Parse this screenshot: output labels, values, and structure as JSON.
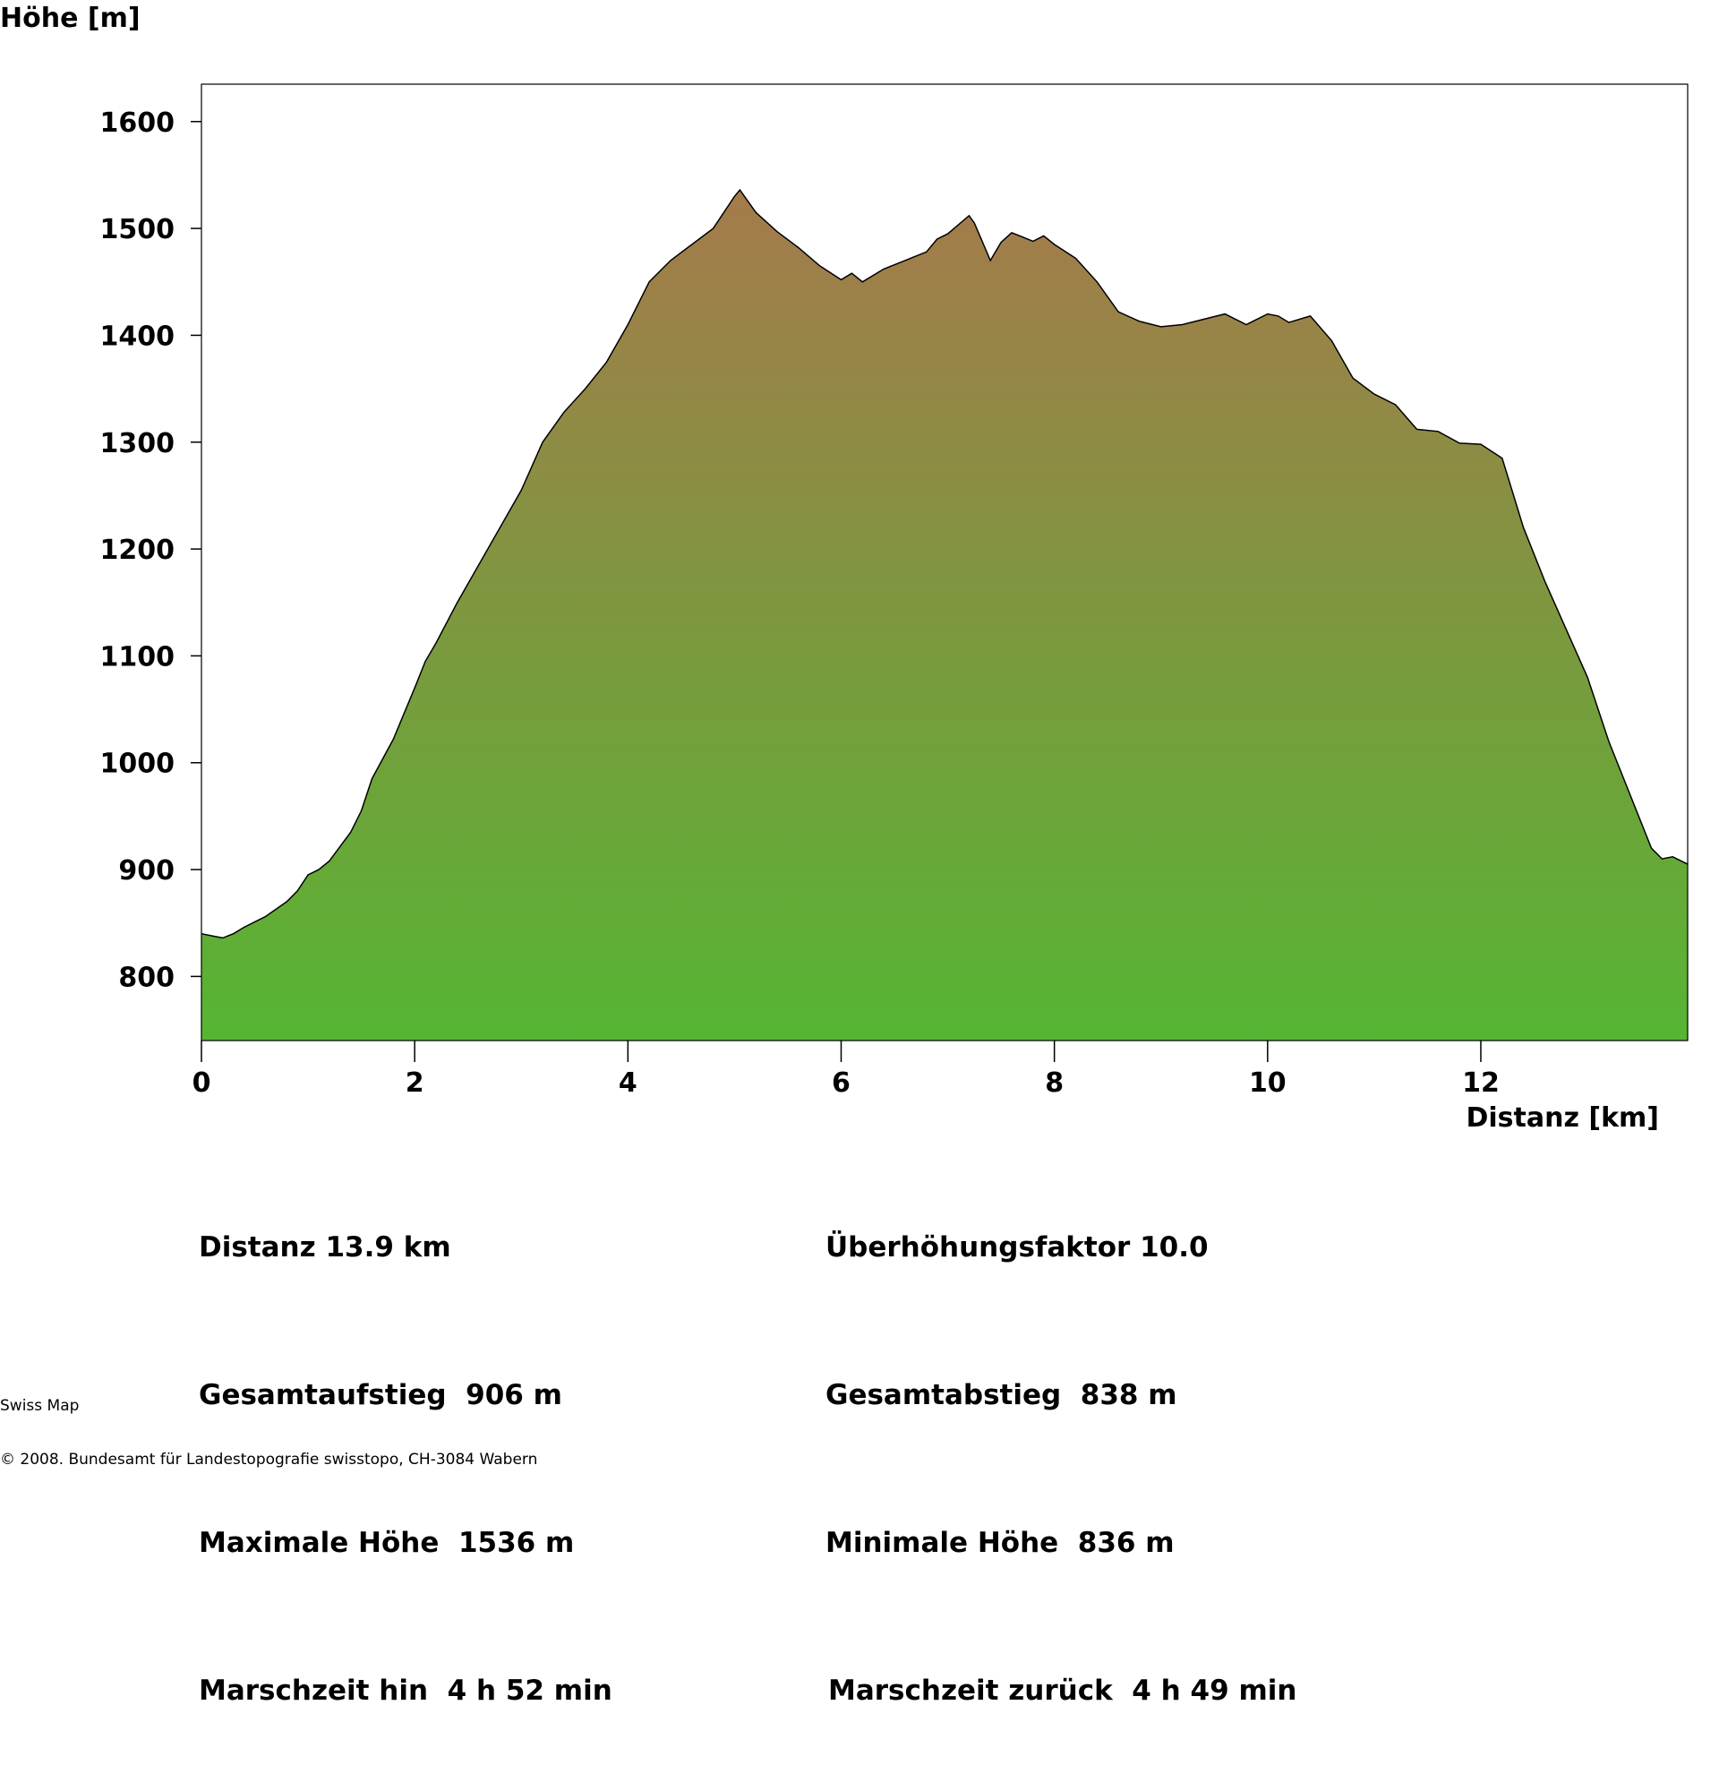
{
  "chart_data": {
    "type": "area",
    "ylabel": "Höhe [m]",
    "xlabel": "Distanz [km]",
    "xlim": [
      0,
      13.94
    ],
    "ylim": [
      740,
      1635
    ],
    "x_ticks": [
      0,
      2,
      4,
      6,
      8,
      10,
      12
    ],
    "y_ticks": [
      800,
      900,
      1000,
      1100,
      1200,
      1300,
      1400,
      1500,
      1600
    ],
    "grid": false,
    "fill_gradient": {
      "top": "#a57a4b",
      "bottom": "#56b533"
    },
    "x": [
      0,
      0.1,
      0.2,
      0.3,
      0.4,
      0.6,
      0.8,
      0.9,
      1.0,
      1.1,
      1.2,
      1.4,
      1.5,
      1.6,
      1.8,
      2.0,
      2.1,
      2.2,
      2.4,
      2.6,
      2.8,
      3.0,
      3.2,
      3.4,
      3.6,
      3.8,
      4.0,
      4.2,
      4.4,
      4.6,
      4.8,
      5.0,
      5.05,
      5.2,
      5.4,
      5.6,
      5.8,
      6.0,
      6.1,
      6.2,
      6.4,
      6.6,
      6.8,
      6.9,
      7.0,
      7.2,
      7.25,
      7.4,
      7.5,
      7.6,
      7.7,
      7.8,
      7.9,
      8.0,
      8.2,
      8.4,
      8.6,
      8.8,
      9.0,
      9.2,
      9.4,
      9.6,
      9.8,
      10.0,
      10.1,
      10.2,
      10.4,
      10.6,
      10.8,
      11.0,
      11.2,
      11.4,
      11.6,
      11.8,
      12.0,
      12.2,
      12.4,
      12.6,
      12.8,
      13.0,
      13.2,
      13.4,
      13.6,
      13.7,
      13.8,
      13.94
    ],
    "values": [
      840,
      838,
      836,
      840,
      846,
      856,
      870,
      880,
      895,
      900,
      908,
      935,
      955,
      985,
      1022,
      1070,
      1095,
      1112,
      1150,
      1185,
      1220,
      1255,
      1300,
      1328,
      1350,
      1375,
      1410,
      1450,
      1470,
      1485,
      1500,
      1530,
      1536,
      1515,
      1497,
      1482,
      1465,
      1452,
      1458,
      1450,
      1462,
      1470,
      1478,
      1490,
      1495,
      1512,
      1505,
      1470,
      1487,
      1496,
      1492,
      1488,
      1493,
      1485,
      1472,
      1450,
      1422,
      1413,
      1408,
      1410,
      1415,
      1420,
      1410,
      1420,
      1418,
      1412,
      1418,
      1395,
      1360,
      1345,
      1335,
      1312,
      1310,
      1299,
      1298,
      1285,
      1220,
      1170,
      1125,
      1080,
      1020,
      970,
      920,
      910,
      912,
      905
    ]
  },
  "stats_left": [
    "Distanz 13.9 km",
    "Gesamtaufstieg  906 m",
    "Maximale Höhe  1536 m",
    "Marschzeit hin  4 h 52 min"
  ],
  "stats_right": [
    "Überhöhungsfaktor 10.0",
    "Gesamtabstieg  838 m",
    "Minimale Höhe  836 m",
    "Marschzeit zurück  4 h 49 min"
  ],
  "footer": {
    "line1": "Swiss Map",
    "line2": "© 2008. Bundesamt für Landestopografie swisstopo, CH-3084 Wabern"
  }
}
